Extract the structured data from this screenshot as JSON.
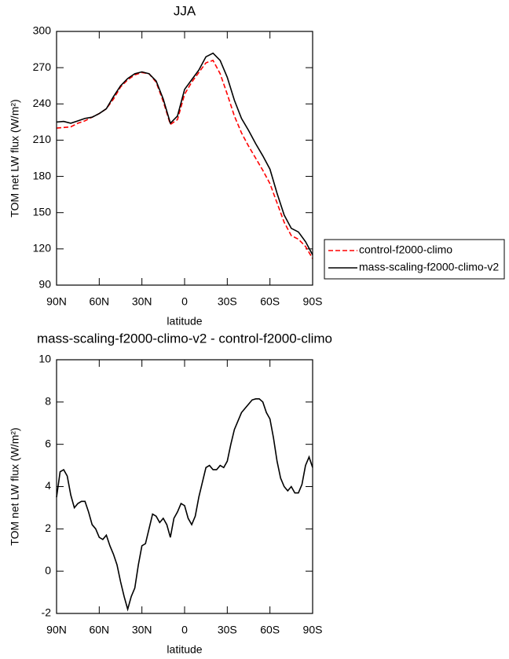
{
  "chart_data": [
    {
      "type": "line",
      "title": "JJA",
      "xlabel": "latitude",
      "ylabel": "TOM net LW flux (W/m²)",
      "x": [
        90,
        85,
        80,
        75,
        70,
        65,
        60,
        55,
        50,
        45,
        40,
        35,
        30,
        25,
        20,
        15,
        10,
        5,
        0,
        -5,
        -10,
        -15,
        -20,
        -25,
        -30,
        -35,
        -40,
        -45,
        -50,
        -55,
        -60,
        -65,
        -70,
        -75,
        -80,
        -85,
        -90
      ],
      "xlim": [
        90,
        -90
      ],
      "xticks": [
        {
          "value": 90,
          "label": "90N"
        },
        {
          "value": 60,
          "label": "60N"
        },
        {
          "value": 30,
          "label": "30N"
        },
        0,
        {
          "value": -30,
          "label": "30S"
        },
        {
          "value": -60,
          "label": "60S"
        },
        {
          "value": -90,
          "label": "90S"
        }
      ],
      "ylim": [
        90,
        300
      ],
      "yticks": [
        90,
        120,
        150,
        180,
        210,
        240,
        270,
        300
      ],
      "legend": "outside-right",
      "series": [
        {
          "name": "control-f2000-climo",
          "color": "#ff0000",
          "linestyle": "dashed",
          "values": [
            220,
            220.5,
            221,
            224,
            226,
            229,
            232,
            236,
            244,
            254,
            260,
            264,
            266,
            265,
            258,
            242,
            223,
            227,
            248,
            258,
            266,
            274,
            276,
            265,
            248,
            230,
            216,
            205,
            195,
            185,
            174,
            158,
            142,
            131,
            128,
            122,
            112
          ]
        },
        {
          "name": "mass-scaling-f2000-climo-v2",
          "color": "#000000",
          "linestyle": "solid",
          "values": [
            225,
            225.5,
            224,
            226,
            228,
            229,
            232,
            236,
            246,
            255,
            261,
            265,
            266.5,
            265,
            259,
            244,
            224,
            230,
            252,
            260,
            268,
            279,
            282,
            276,
            262,
            243,
            228,
            218,
            207,
            197,
            186,
            166,
            148,
            137,
            134,
            126,
            115
          ]
        }
      ]
    },
    {
      "type": "line",
      "title": "mass-scaling-f2000-climo-v2 - control-f2000-climo",
      "xlabel": "latitude",
      "ylabel": "TOM net LW flux (W/m²)",
      "x": [
        90,
        87.5,
        85,
        82.5,
        80,
        77.5,
        75,
        72.5,
        70,
        67.5,
        65,
        62.5,
        60,
        57.5,
        55,
        52.5,
        50,
        47.5,
        45,
        42.5,
        40,
        37.5,
        35,
        32.5,
        30,
        27.5,
        25,
        22.5,
        20,
        17.5,
        15,
        12.5,
        10,
        7.5,
        5,
        2.5,
        0,
        -2.5,
        -5,
        -7.5,
        -10,
        -12.5,
        -15,
        -17.5,
        -20,
        -22.5,
        -25,
        -27.5,
        -30,
        -32.5,
        -35,
        -37.5,
        -40,
        -42.5,
        -45,
        -47.5,
        -50,
        -52.5,
        -55,
        -57.5,
        -60,
        -62.5,
        -65,
        -67.5,
        -70,
        -72.5,
        -75,
        -77.5,
        -80,
        -82.5,
        -85,
        -87.5,
        -90
      ],
      "xlim": [
        90,
        -90
      ],
      "xticks": [
        {
          "value": 90,
          "label": "90N"
        },
        {
          "value": 60,
          "label": "60N"
        },
        {
          "value": 30,
          "label": "30N"
        },
        0,
        {
          "value": -30,
          "label": "30S"
        },
        {
          "value": -60,
          "label": "60S"
        },
        {
          "value": -90,
          "label": "90S"
        }
      ],
      "ylim": [
        -2,
        10
      ],
      "yticks": [
        -2,
        0,
        2,
        4,
        6,
        8,
        10
      ],
      "color": "#000000",
      "values": [
        3.5,
        4.7,
        4.8,
        4.5,
        3.6,
        3.0,
        3.2,
        3.3,
        3.3,
        2.8,
        2.2,
        2.0,
        1.6,
        1.5,
        1.7,
        1.2,
        0.8,
        0.3,
        -0.5,
        -1.2,
        -1.8,
        -1.2,
        -0.8,
        0.3,
        1.2,
        1.3,
        2.0,
        2.7,
        2.6,
        2.3,
        2.5,
        2.2,
        1.6,
        2.5,
        2.8,
        3.2,
        3.1,
        2.5,
        2.2,
        2.6,
        3.5,
        4.2,
        4.9,
        5.0,
        4.8,
        4.8,
        5.0,
        4.9,
        5.2,
        6.0,
        6.7,
        7.1,
        7.5,
        7.7,
        7.9,
        8.1,
        8.15,
        8.15,
        8.0,
        7.5,
        7.2,
        6.3,
        5.2,
        4.4,
        4.0,
        3.8,
        4.0,
        3.7,
        3.7,
        4.1,
        5.0,
        5.4,
        4.9
      ]
    }
  ]
}
